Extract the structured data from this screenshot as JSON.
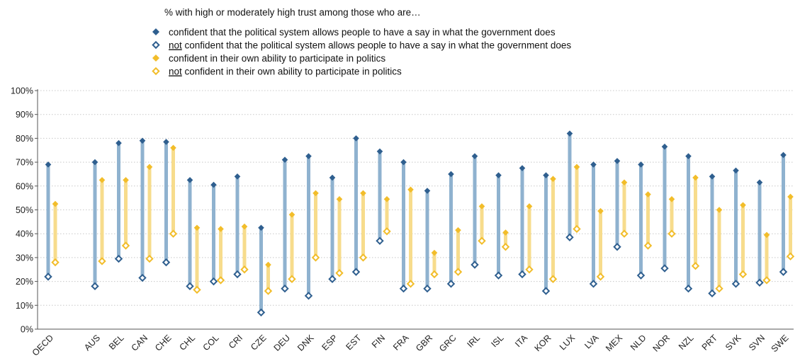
{
  "legend": {
    "title": "% with high or moderately high trust among those who are…",
    "items": [
      {
        "prefix": "",
        "text": "confident that the political system allows people to have a say in what the government does",
        "marker": "filled",
        "color": "#2f5f8f"
      },
      {
        "prefix": "not",
        "text": " confident that the political system allows people to have a say in what the government does",
        "marker": "hollow",
        "color": "#2f5f8f"
      },
      {
        "prefix": "",
        "text": "confident in their own ability to participate in politics",
        "marker": "filled",
        "color": "#f2bd2a"
      },
      {
        "prefix": "not",
        "text": " confident in their own ability to participate in politics",
        "marker": "hollow",
        "color": "#f2bd2a"
      }
    ]
  },
  "colors": {
    "system_line": "#8fb2cf",
    "system_marker": "#2f5f8f",
    "self_line": "#f7dc8c",
    "self_marker": "#f2bd2a"
  },
  "chart_data": {
    "type": "dot-range",
    "ylim": [
      0,
      100
    ],
    "yticks": [
      0,
      10,
      20,
      30,
      40,
      50,
      60,
      70,
      80,
      90,
      100
    ],
    "ytick_labels": [
      "0%",
      "10%",
      "20%",
      "30%",
      "40%",
      "50%",
      "60%",
      "70%",
      "80%",
      "90%",
      "100%"
    ],
    "grid": true,
    "legend_position": "top",
    "categories": [
      "OECD",
      "AUS",
      "BEL",
      "CAN",
      "CHE",
      "CHL",
      "COL",
      "CRI",
      "CZE",
      "DEU",
      "DNK",
      "ESP",
      "EST",
      "FIN",
      "FRA",
      "GBR",
      "GRC",
      "IRL",
      "ISL",
      "ITA",
      "KOR",
      "LUX",
      "LVA",
      "MEX",
      "NLD",
      "NOR",
      "NZL",
      "PRT",
      "SVK",
      "SVN",
      "SWE"
    ],
    "series": [
      {
        "name": "confident that the political system allows people to have a say in what the government does",
        "values": [
          69,
          70,
          78,
          79,
          78.5,
          62.5,
          60.5,
          64,
          42.5,
          71,
          72.5,
          63.5,
          80,
          74.5,
          70,
          58,
          65,
          72.5,
          64.5,
          67.5,
          64.5,
          82,
          69,
          70.5,
          69,
          76.5,
          72.5,
          64,
          66.5,
          61.5,
          73
        ]
      },
      {
        "name": "not confident that the political system allows people to have a say in what the government does",
        "values": [
          22,
          18,
          29.5,
          21.5,
          28,
          18,
          20,
          23,
          7,
          17,
          14,
          21,
          24,
          37,
          17,
          17,
          19,
          27,
          22.5,
          23,
          16,
          38.5,
          19,
          34.5,
          22.5,
          25.5,
          17,
          15,
          19,
          19.5,
          24
        ]
      },
      {
        "name": "confident in their own ability to participate in politics",
        "values": [
          52.5,
          62.5,
          62.5,
          68,
          76,
          42.5,
          42,
          43,
          27,
          48,
          57,
          54.5,
          57,
          54.5,
          58.5,
          32,
          41.5,
          51.5,
          40.5,
          51.5,
          63,
          68,
          49.5,
          61.5,
          56.5,
          54.5,
          63.5,
          50,
          52,
          39.5,
          55.5
        ]
      },
      {
        "name": "not confident in their own ability to participate in politics",
        "values": [
          28,
          28.5,
          35,
          29.5,
          40,
          16.5,
          20.5,
          25,
          16,
          21,
          30,
          23.5,
          30,
          41,
          19,
          23,
          24,
          37,
          34.5,
          25,
          21,
          42,
          22,
          40,
          35,
          40,
          26.5,
          17,
          23,
          20.5,
          30.5
        ]
      }
    ]
  }
}
